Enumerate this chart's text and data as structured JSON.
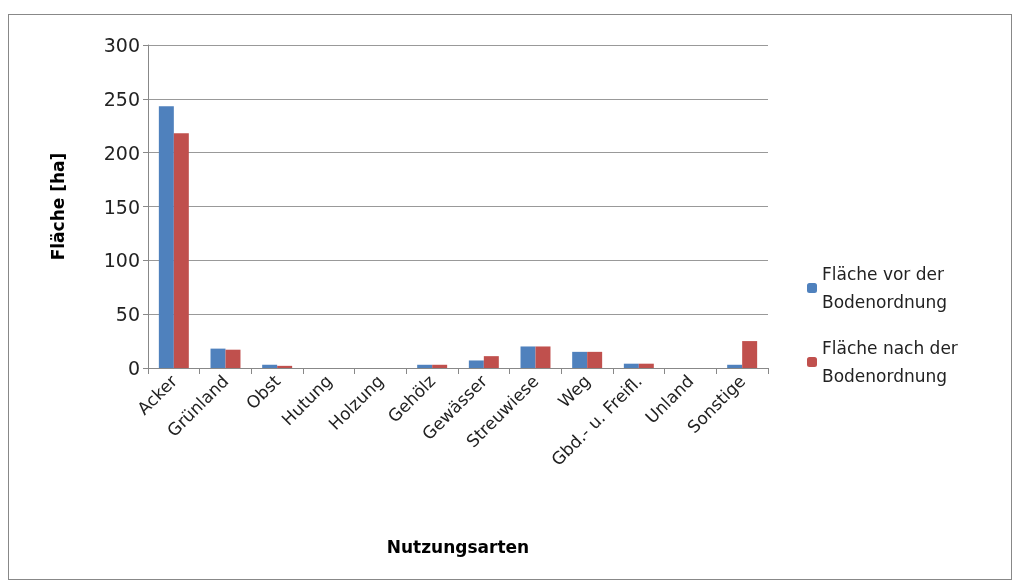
{
  "chart_data": {
    "type": "bar",
    "xlabel": "Nutzungsarten",
    "ylabel": "Fläche [ha]",
    "categories": [
      "Acker",
      "Grünland",
      "Obst",
      "Hutung",
      "Holzung",
      "Gehölz",
      "Gewässer",
      "Streuwiese",
      "Weg",
      "Gbd.- u. Freifl.",
      "Unland",
      "Sonstige"
    ],
    "series": [
      {
        "name": "Fläche vor der Bodenordnung",
        "color": "#4f81bd",
        "values": [
          243,
          18,
          3,
          0,
          0,
          3,
          7,
          20,
          15,
          4,
          0,
          3
        ]
      },
      {
        "name": "Fläche nach der Bodenordnung",
        "color": "#c0504d",
        "values": [
          218,
          17,
          2,
          0,
          0,
          3,
          11,
          20,
          15,
          4,
          0,
          25
        ]
      }
    ],
    "ylim": [
      0,
      300
    ],
    "yticks": [
      0,
      50,
      100,
      150,
      200,
      250,
      300
    ],
    "grid": "y",
    "legend": "right"
  }
}
